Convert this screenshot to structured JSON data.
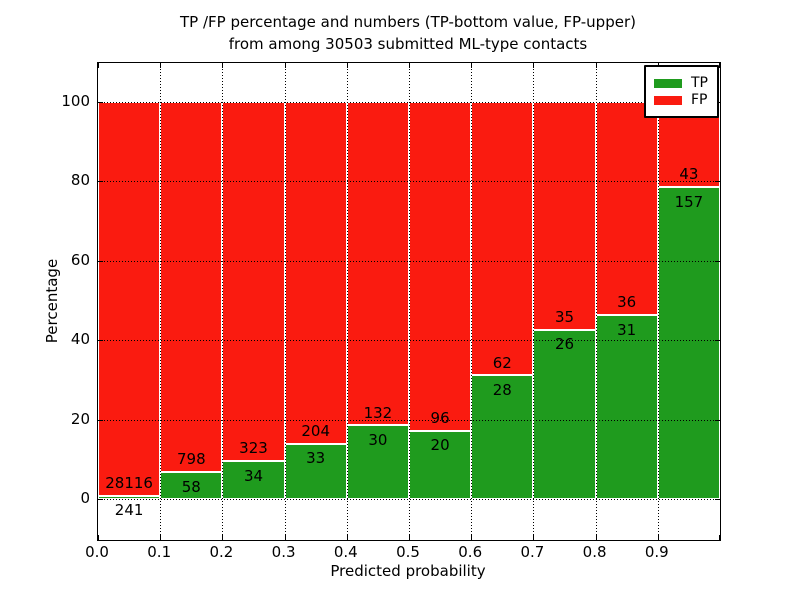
{
  "title": {
    "line1": "TP /FP percentage and numbers (TP-bottom value, FP-upper)",
    "line2": "from among 30503 submitted ML-type contacts"
  },
  "chart_data": {
    "type": "bar",
    "stacked": true,
    "title": "TP /FP percentage and numbers (TP-bottom value, FP-upper) from among 30503 submitted ML-type contacts",
    "total_submitted_contacts": 30503,
    "xlabel": "Predicted probability",
    "ylabel": "Percentage",
    "categories": [
      "0.0",
      "0.1",
      "0.2",
      "0.3",
      "0.4",
      "0.5",
      "0.6",
      "0.7",
      "0.8",
      "0.9"
    ],
    "bin_width": 0.1,
    "series": [
      {
        "name": "TP",
        "color": "#1f9b1e",
        "counts": [
          241,
          58,
          34,
          33,
          30,
          20,
          28,
          26,
          31,
          157
        ]
      },
      {
        "name": "FP",
        "color": "#fa1b10",
        "counts": [
          28116,
          798,
          323,
          204,
          132,
          96,
          62,
          35,
          36,
          43
        ]
      }
    ],
    "tp_percent": [
      0.85,
      6.78,
      9.52,
      13.92,
      18.52,
      17.24,
      31.11,
      42.62,
      46.27,
      78.5
    ],
    "xticks": [
      "0.0",
      "0.1",
      "0.2",
      "0.3",
      "0.4",
      "0.5",
      "0.6",
      "0.7",
      "0.8",
      "0.9"
    ],
    "yticks": [
      0,
      20,
      40,
      60,
      80,
      100
    ],
    "xlim": [
      0.0,
      1.0
    ],
    "ylim": [
      -10.3,
      109.7
    ],
    "grid": "dotted",
    "legend": {
      "position": "upper right",
      "entries": [
        {
          "label": "TP",
          "color": "#1f9b1e"
        },
        {
          "label": "FP",
          "color": "#fa1b10"
        }
      ]
    }
  }
}
